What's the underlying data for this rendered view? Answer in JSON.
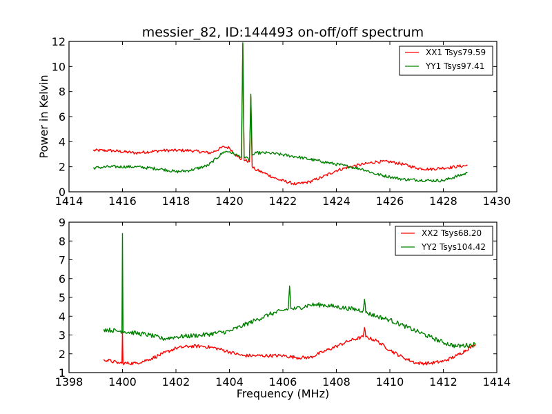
{
  "chart_data": [
    {
      "type": "line",
      "title": "messier_82, ID:144493 on-off/off spectrum",
      "xlabel": "",
      "ylabel": "Power in Kelvin",
      "xlim": [
        1414,
        1430
      ],
      "ylim": [
        0,
        12
      ],
      "xticks": [
        "1414",
        "1416",
        "1418",
        "1420",
        "1422",
        "1424",
        "1426",
        "1428",
        "1430"
      ],
      "yticks": [
        "0",
        "2",
        "4",
        "6",
        "8",
        "10",
        "12"
      ],
      "xtick_values": [
        1414,
        1416,
        1418,
        1420,
        1422,
        1424,
        1426,
        1428,
        1430
      ],
      "ytick_values": [
        0,
        2,
        4,
        6,
        8,
        10,
        12
      ],
      "grid": false,
      "legend_position": "top-right",
      "series": [
        {
          "name": "XX1 Tsys79.59",
          "color": "#ff0000",
          "noise": 0.12,
          "x": [
            1414.9,
            1415.5,
            1416.5,
            1417.5,
            1418.5,
            1419.3,
            1419.8,
            1420.0,
            1420.3,
            1420.45,
            1420.5,
            1420.55,
            1420.6,
            1420.75,
            1420.8,
            1420.85,
            1420.95,
            1421.3,
            1421.8,
            1422.5,
            1423.0,
            1423.5,
            1424.0,
            1424.5,
            1425.0,
            1425.5,
            1426.0,
            1426.5,
            1427.0,
            1427.5,
            1428.0,
            1428.9
          ],
          "y": [
            3.3,
            3.3,
            3.1,
            3.3,
            3.3,
            3.1,
            3.6,
            3.5,
            2.8,
            2.6,
            11.8,
            2.5,
            2.5,
            2.4,
            7.6,
            2.0,
            1.8,
            1.5,
            1.0,
            0.6,
            0.8,
            1.2,
            1.7,
            2.0,
            2.2,
            2.4,
            2.4,
            2.2,
            1.9,
            1.8,
            1.9,
            2.1
          ]
        },
        {
          "name": "YY1 Tsys97.41",
          "color": "#008000",
          "noise": 0.12,
          "x": [
            1414.9,
            1415.5,
            1416.5,
            1417.5,
            1418.0,
            1418.5,
            1419.2,
            1419.8,
            1420.0,
            1420.3,
            1420.45,
            1420.5,
            1420.55,
            1420.6,
            1420.75,
            1420.8,
            1420.85,
            1421.0,
            1421.5,
            1422.5,
            1423.5,
            1424.5,
            1425.0,
            1425.5,
            1426.0,
            1426.5,
            1427.5,
            1428.0,
            1428.9
          ],
          "y": [
            1.9,
            2.0,
            2.0,
            1.8,
            1.6,
            1.7,
            2.1,
            3.2,
            3.2,
            2.9,
            2.8,
            11.9,
            2.8,
            2.7,
            2.6,
            7.8,
            2.9,
            3.1,
            3.1,
            2.8,
            2.4,
            2.0,
            1.8,
            1.4,
            1.2,
            1.0,
            0.9,
            0.9,
            1.5
          ]
        }
      ]
    },
    {
      "type": "line",
      "title": "",
      "xlabel": "Frequency (MHz)",
      "ylabel": "",
      "xlim": [
        1398,
        1414
      ],
      "ylim": [
        1,
        9
      ],
      "xticks": [
        "1398",
        "1400",
        "1402",
        "1404",
        "1406",
        "1408",
        "1410",
        "1412",
        "1414"
      ],
      "yticks": [
        "1",
        "2",
        "3",
        "4",
        "5",
        "6",
        "7",
        "8",
        "9"
      ],
      "xtick_values": [
        1398,
        1400,
        1402,
        1404,
        1406,
        1408,
        1410,
        1412,
        1414
      ],
      "ytick_values": [
        1,
        2,
        3,
        4,
        5,
        6,
        7,
        8,
        9
      ],
      "grid": false,
      "legend_position": "top-right",
      "series": [
        {
          "name": "XX2 Tsys68.20",
          "color": "#ff0000",
          "noise": 0.09,
          "x": [
            1399.3,
            1399.9,
            1399.98,
            1400.0,
            1400.02,
            1400.5,
            1401.0,
            1401.5,
            1402.0,
            1402.5,
            1403.0,
            1403.5,
            1404.0,
            1404.5,
            1405.0,
            1405.5,
            1406.0,
            1406.5,
            1407.0,
            1407.5,
            1408.0,
            1408.5,
            1409.0,
            1409.05,
            1409.1,
            1409.5,
            1410.0,
            1410.5,
            1411.0,
            1411.5,
            1412.0,
            1412.5,
            1413.2
          ],
          "y": [
            1.7,
            1.5,
            1.5,
            3.2,
            1.5,
            1.5,
            1.7,
            2.0,
            2.3,
            2.4,
            2.4,
            2.3,
            2.1,
            1.9,
            1.9,
            1.9,
            1.9,
            1.8,
            1.8,
            2.1,
            2.4,
            2.7,
            2.9,
            3.4,
            2.9,
            2.7,
            2.2,
            1.8,
            1.5,
            1.5,
            1.6,
            1.9,
            2.5
          ]
        },
        {
          "name": "YY2 Tsys104.42",
          "color": "#008000",
          "noise": 0.12,
          "x": [
            1399.3,
            1399.9,
            1399.98,
            1400.0,
            1400.02,
            1400.5,
            1401.0,
            1401.5,
            1402.0,
            1403.0,
            1404.0,
            1404.5,
            1405.0,
            1405.5,
            1406.0,
            1406.2,
            1406.25,
            1406.3,
            1406.5,
            1407.0,
            1407.5,
            1408.0,
            1408.5,
            1409.0,
            1409.05,
            1409.1,
            1409.5,
            1410.0,
            1410.5,
            1411.0,
            1411.5,
            1412.0,
            1412.5,
            1413.2
          ],
          "y": [
            3.3,
            3.2,
            3.2,
            8.4,
            3.2,
            3.1,
            3.0,
            2.8,
            2.9,
            3.0,
            3.2,
            3.5,
            3.8,
            4.1,
            4.3,
            4.4,
            5.6,
            4.4,
            4.4,
            4.6,
            4.6,
            4.5,
            4.4,
            4.3,
            4.9,
            4.2,
            4.0,
            3.8,
            3.5,
            3.2,
            2.9,
            2.6,
            2.4,
            2.5
          ]
        }
      ]
    }
  ]
}
